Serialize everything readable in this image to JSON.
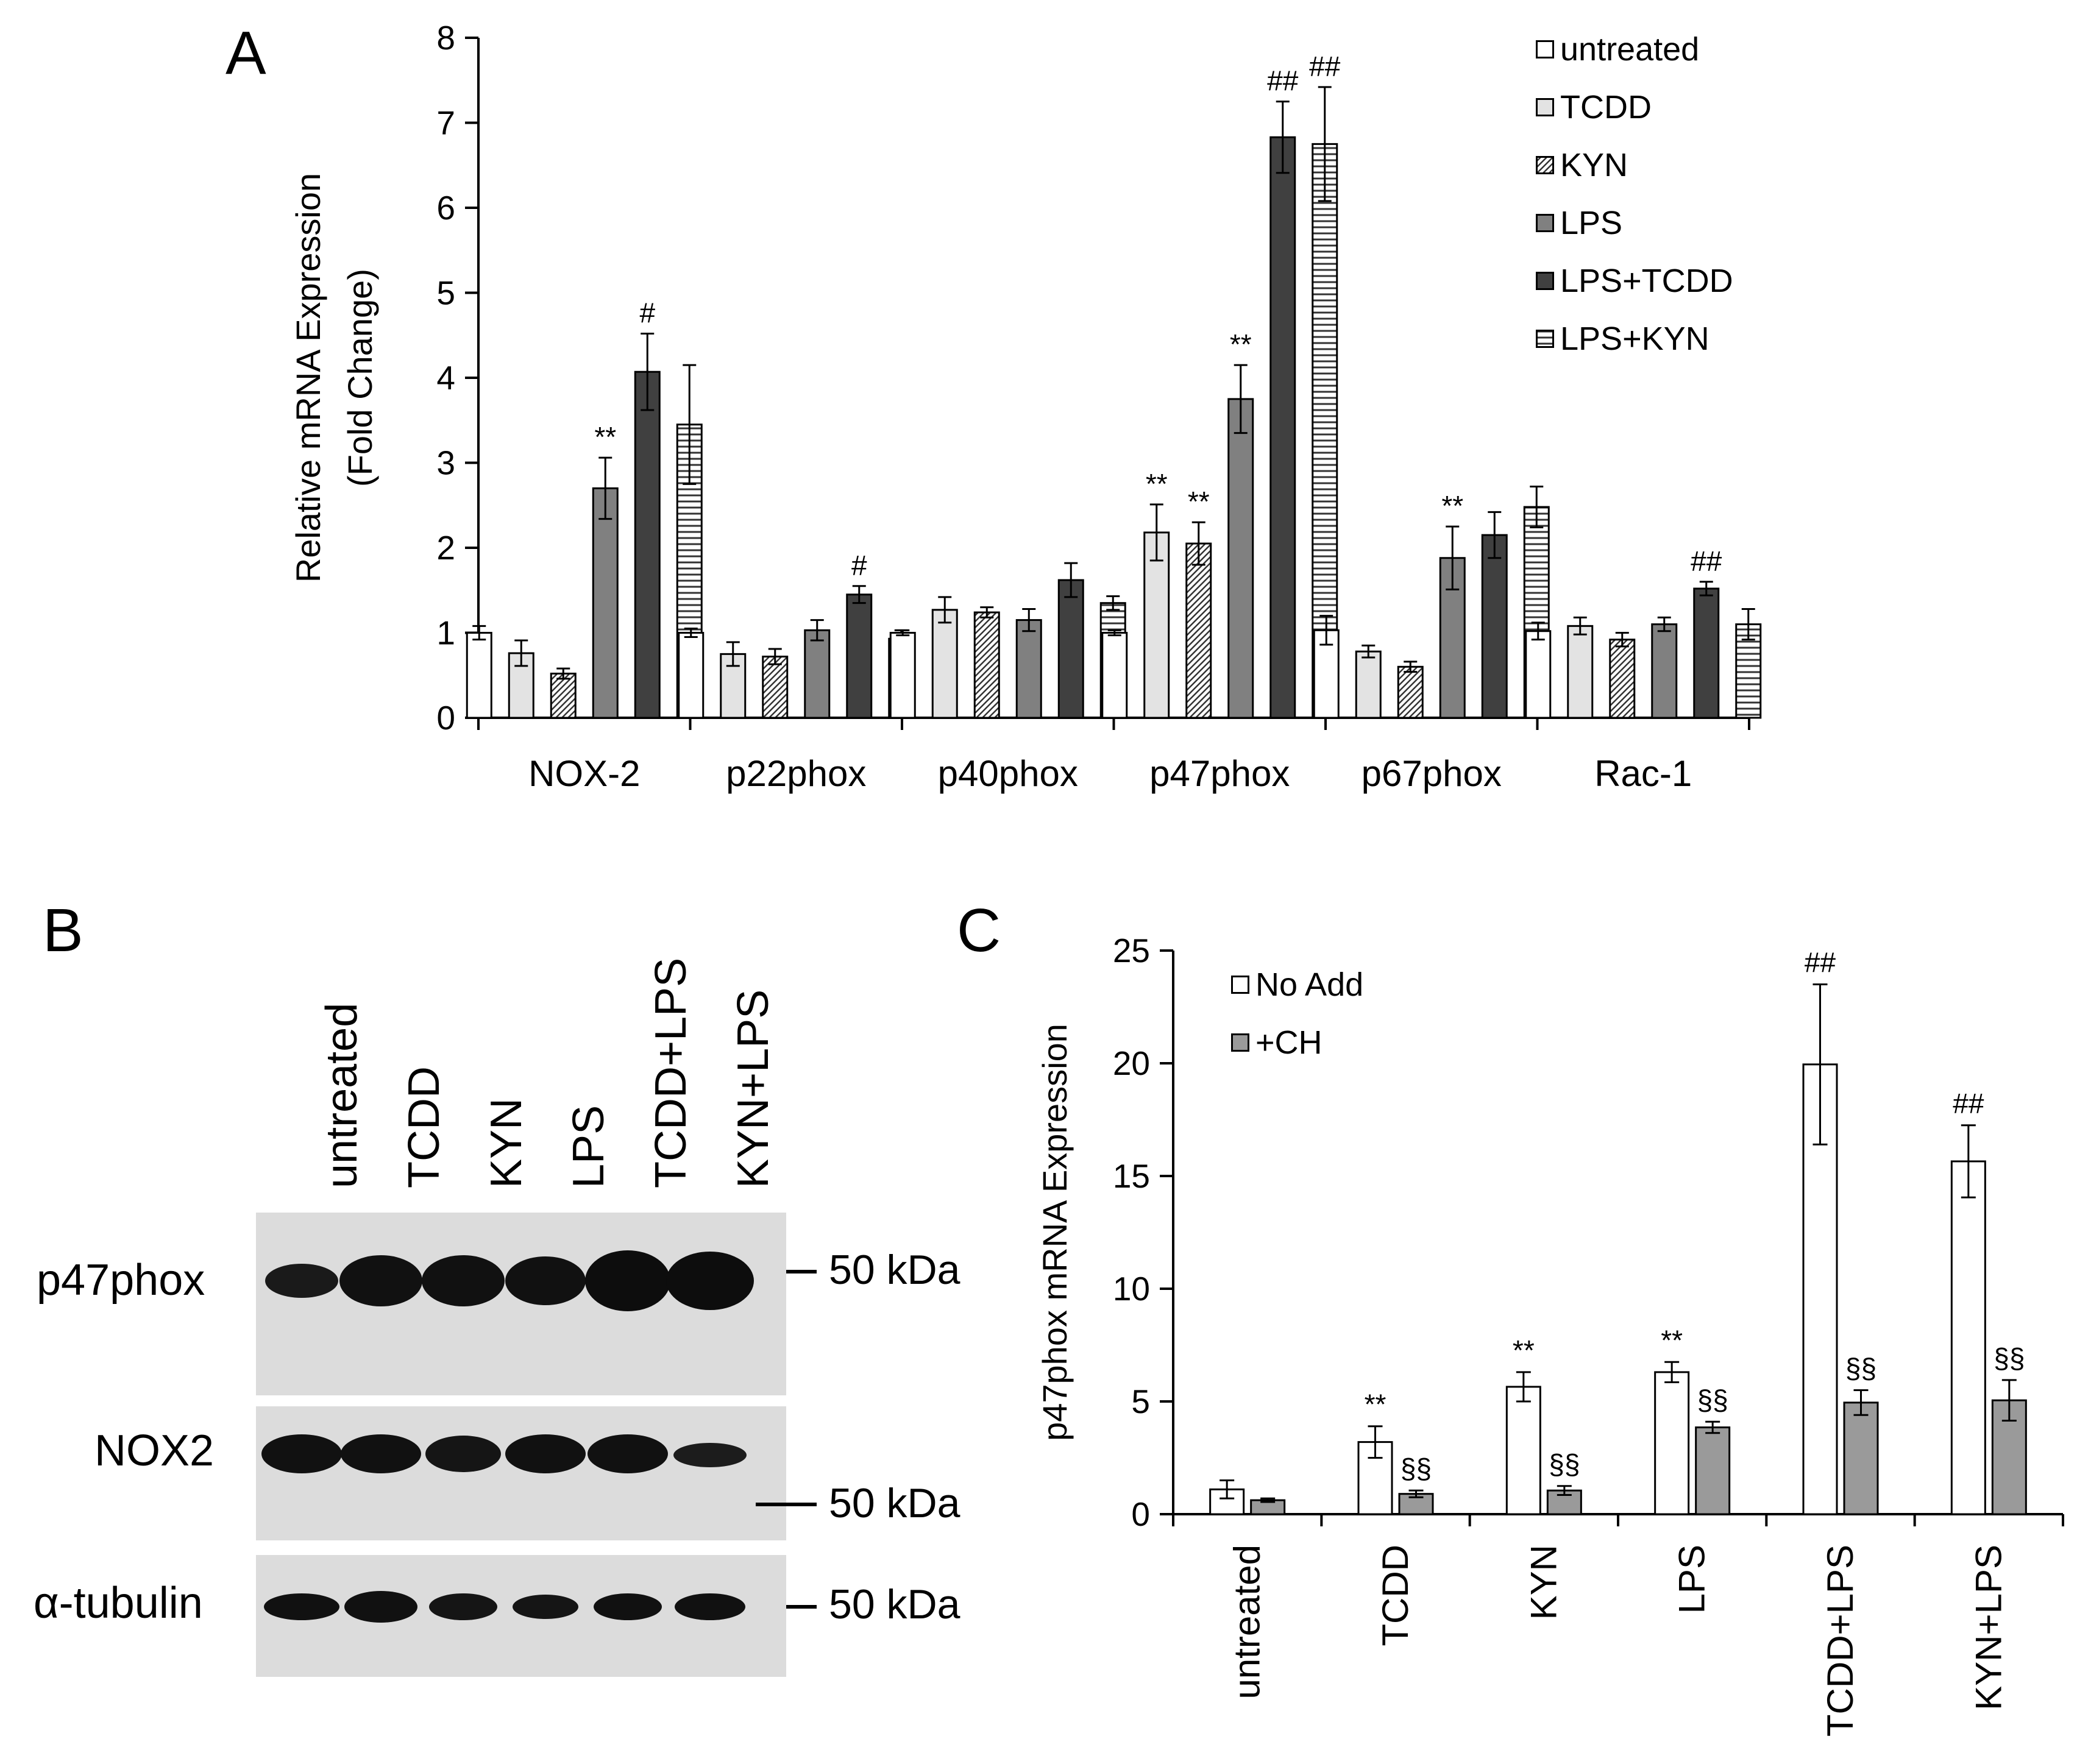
{
  "panels": {
    "a": "A",
    "b": "B",
    "c": "C"
  },
  "colors": {
    "untreated": "#ffffff",
    "tcdd": "#e3e3e3",
    "kyn": "#ffffff",
    "lps": "#808080",
    "lps_tcdd": "#404040",
    "lps_kyn": "#ffffff",
    "no_add": "#ffffff",
    "ch": "#9a9a9a"
  },
  "chart_data": [
    {
      "id": "A",
      "type": "bar",
      "ylabel_line1": "Relative mRNA Expression",
      "ylabel_line2": "(Fold Change)",
      "xlabel": "",
      "ylim": [
        0,
        8
      ],
      "yticks": [
        "0",
        "1",
        "2",
        "3",
        "4",
        "5",
        "6",
        "7",
        "8"
      ],
      "categories": [
        "NOX-2",
        "p22phox",
        "p40phox",
        "p47phox",
        "p67phox",
        "Rac-1"
      ],
      "legend_position": "top-right",
      "series": [
        {
          "name": "untreated",
          "key": "untreated",
          "values": [
            1.0,
            1.0,
            1.0,
            1.0,
            1.03,
            1.02
          ],
          "errors": [
            0.08,
            0.05,
            0.03,
            0.03,
            0.17,
            0.1
          ]
        },
        {
          "name": "TCDD",
          "key": "tcdd",
          "values": [
            0.76,
            0.75,
            1.27,
            2.18,
            0.78,
            1.08
          ],
          "errors": [
            0.15,
            0.14,
            0.15,
            0.33,
            0.07,
            0.1
          ]
        },
        {
          "name": "KYN",
          "key": "kyn",
          "values": [
            0.52,
            0.72,
            1.24,
            2.05,
            0.6,
            0.92
          ],
          "errors": [
            0.06,
            0.09,
            0.06,
            0.25,
            0.06,
            0.08
          ]
        },
        {
          "name": "LPS",
          "key": "lps",
          "values": [
            2.7,
            1.03,
            1.15,
            3.75,
            1.88,
            1.1
          ],
          "errors": [
            0.36,
            0.12,
            0.13,
            0.4,
            0.37,
            0.08
          ]
        },
        {
          "name": "LPS+TCDD",
          "key": "lps_tcdd",
          "values": [
            4.07,
            1.45,
            1.62,
            6.83,
            2.15,
            1.52
          ],
          "errors": [
            0.45,
            0.1,
            0.2,
            0.42,
            0.27,
            0.08
          ]
        },
        {
          "name": "LPS+KYN",
          "key": "lps_kyn",
          "values": [
            3.45,
            0.93,
            1.35,
            6.75,
            2.48,
            1.1
          ],
          "errors": [
            0.7,
            0.1,
            0.08,
            0.67,
            0.24,
            0.18
          ]
        }
      ],
      "annotations": [
        {
          "category": "NOX-2",
          "series": "LPS",
          "text": "**"
        },
        {
          "category": "NOX-2",
          "series": "LPS+TCDD",
          "text": "#"
        },
        {
          "category": "p22phox",
          "series": "LPS+TCDD",
          "text": "#"
        },
        {
          "category": "p47phox",
          "series": "TCDD",
          "text": "**"
        },
        {
          "category": "p47phox",
          "series": "KYN",
          "text": "**"
        },
        {
          "category": "p47phox",
          "series": "LPS",
          "text": "**"
        },
        {
          "category": "p47phox",
          "series": "LPS+TCDD",
          "text": "##"
        },
        {
          "category": "p47phox",
          "series": "LPS+KYN",
          "text": "##"
        },
        {
          "category": "p67phox",
          "series": "LPS",
          "text": "**"
        },
        {
          "category": "Rac-1",
          "series": "LPS+TCDD",
          "text": "##"
        }
      ]
    },
    {
      "id": "C",
      "type": "bar",
      "ylabel": "p47phox mRNA Expression",
      "xlabel": "",
      "ylim": [
        0,
        25
      ],
      "yticks": [
        "0",
        "5",
        "10",
        "15",
        "20",
        "25"
      ],
      "categories": [
        "untreated",
        "TCDD",
        "KYN",
        "LPS",
        "TCDD+LPS",
        "KYN+LPS"
      ],
      "legend_position": "top-left",
      "series": [
        {
          "name": "No Add",
          "key": "no_add",
          "values": [
            1.1,
            3.2,
            5.65,
            6.3,
            19.95,
            15.65
          ],
          "errors": [
            0.4,
            0.7,
            0.65,
            0.45,
            3.55,
            1.6
          ]
        },
        {
          "name": "+CH",
          "key": "ch",
          "values": [
            0.62,
            0.9,
            1.05,
            3.85,
            4.95,
            5.05
          ],
          "errors": [
            0.08,
            0.15,
            0.2,
            0.25,
            0.55,
            0.9
          ]
        }
      ],
      "annotations": [
        {
          "category": "TCDD",
          "series": "No Add",
          "text": "**"
        },
        {
          "category": "KYN",
          "series": "No Add",
          "text": "**"
        },
        {
          "category": "LPS",
          "series": "No Add",
          "text": "**"
        },
        {
          "category": "TCDD+LPS",
          "series": "No Add",
          "text": "##"
        },
        {
          "category": "KYN+LPS",
          "series": "No Add",
          "text": "##"
        },
        {
          "category": "TCDD",
          "series": "+CH",
          "text": "§§"
        },
        {
          "category": "KYN",
          "series": "+CH",
          "text": "§§"
        },
        {
          "category": "LPS",
          "series": "+CH",
          "text": "§§"
        },
        {
          "category": "TCDD+LPS",
          "series": "+CH",
          "text": "§§"
        },
        {
          "category": "KYN+LPS",
          "series": "+CH",
          "text": "§§"
        }
      ]
    }
  ],
  "western_blot": {
    "lanes": [
      "untreated",
      "TCDD",
      "KYN",
      "LPS",
      "TCDD+LPS",
      "KYN+LPS"
    ],
    "rows": [
      {
        "label": "p47phox",
        "marker": "50 kDa"
      },
      {
        "label": "NOX2",
        "marker": "50 kDa"
      },
      {
        "label": "α-tubulin",
        "marker": "50 kDa"
      }
    ]
  }
}
